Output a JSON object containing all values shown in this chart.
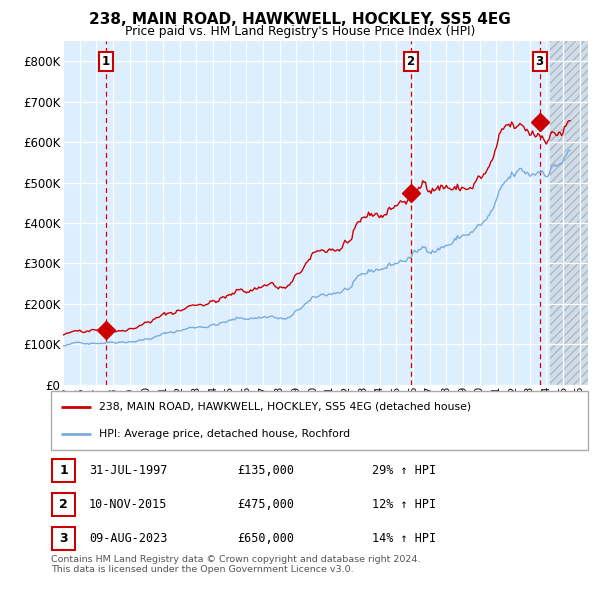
{
  "title": "238, MAIN ROAD, HAWKWELL, HOCKLEY, SS5 4EG",
  "subtitle": "Price paid vs. HM Land Registry's House Price Index (HPI)",
  "ylim": [
    0,
    850000
  ],
  "yticks": [
    0,
    100000,
    200000,
    300000,
    400000,
    500000,
    600000,
    700000,
    800000
  ],
  "ytick_labels": [
    "£0",
    "£100K",
    "£200K",
    "£300K",
    "£400K",
    "£500K",
    "£600K",
    "£700K",
    "£800K"
  ],
  "xlim_start": 1995.0,
  "xlim_end": 2026.5,
  "xticks": [
    1995,
    1996,
    1997,
    1998,
    1999,
    2000,
    2001,
    2002,
    2003,
    2004,
    2005,
    2006,
    2007,
    2008,
    2009,
    2010,
    2011,
    2012,
    2013,
    2014,
    2015,
    2016,
    2017,
    2018,
    2019,
    2020,
    2021,
    2022,
    2023,
    2024,
    2025,
    2026
  ],
  "sale1_x": 1997.58,
  "sale1_y": 135000,
  "sale1_label": "1",
  "sale2_x": 2015.86,
  "sale2_y": 475000,
  "sale2_label": "2",
  "sale3_x": 2023.6,
  "sale3_y": 650000,
  "sale3_label": "3",
  "red_color": "#cc0000",
  "blue_color": "#7aaddb",
  "bg_plot": "#ddeeff",
  "grid_color": "#ffffff",
  "legend_line1": "238, MAIN ROAD, HAWKWELL, HOCKLEY, SS5 4EG (detached house)",
  "legend_line2": "HPI: Average price, detached house, Rochford",
  "table_rows": [
    {
      "num": "1",
      "date": "31-JUL-1997",
      "price": "£135,000",
      "hpi": "29% ↑ HPI"
    },
    {
      "num": "2",
      "date": "10-NOV-2015",
      "price": "£475,000",
      "hpi": "12% ↑ HPI"
    },
    {
      "num": "3",
      "date": "09-AUG-2023",
      "price": "£650,000",
      "hpi": "14% ↑ HPI"
    }
  ],
  "footer": "Contains HM Land Registry data © Crown copyright and database right 2024.\nThis data is licensed under the Open Government Licence v3.0.",
  "vline_color": "#dd0000"
}
